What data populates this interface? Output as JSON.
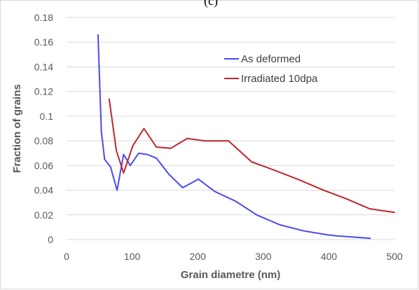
{
  "figure_label": "(c)",
  "chart_data": {
    "type": "line",
    "xlabel": "Grain diametre (nm)",
    "ylabel": "Fraction of grains",
    "xlim": [
      0,
      500
    ],
    "ylim": [
      0,
      0.18
    ],
    "x_ticks": [
      0,
      100,
      200,
      300,
      400,
      500
    ],
    "y_ticks": [
      0,
      0.02,
      0.04,
      0.06,
      0.08,
      0.1,
      0.12,
      0.14,
      0.16,
      0.18
    ],
    "x_tick_labels": [
      "0",
      "100",
      "200",
      "300",
      "400",
      "500"
    ],
    "y_tick_labels": [
      "0",
      "0.02",
      "0.04",
      "0.06",
      "0.08",
      "0.1",
      "0.12",
      "0.14",
      "0.16",
      "0.18"
    ],
    "grid": "horizontal",
    "legend_position": "top-right",
    "series": [
      {
        "name": "As deformed",
        "color": "#4a4af0",
        "x": [
          48,
          53,
          58,
          67,
          77,
          87,
          97,
          110,
          123,
          137,
          156,
          177,
          201,
          226,
          258,
          290,
          325,
          362,
          396,
          412,
          463
        ],
        "y": [
          0.166,
          0.088,
          0.065,
          0.059,
          0.04,
          0.069,
          0.06,
          0.07,
          0.069,
          0.066,
          0.053,
          0.042,
          0.049,
          0.039,
          0.031,
          0.02,
          0.012,
          0.007,
          0.004,
          0.003,
          0.001
        ]
      },
      {
        "name": "Irradiated 10dpa",
        "color": "#c0262d",
        "x": [
          65,
          76,
          87,
          101,
          118,
          137,
          159,
          184,
          210,
          247,
          282,
          318,
          352,
          392,
          427,
          462,
          500
        ],
        "y": [
          0.114,
          0.072,
          0.054,
          0.076,
          0.09,
          0.075,
          0.074,
          0.082,
          0.08,
          0.08,
          0.063,
          0.056,
          0.049,
          0.04,
          0.033,
          0.025,
          0.022
        ]
      }
    ]
  }
}
